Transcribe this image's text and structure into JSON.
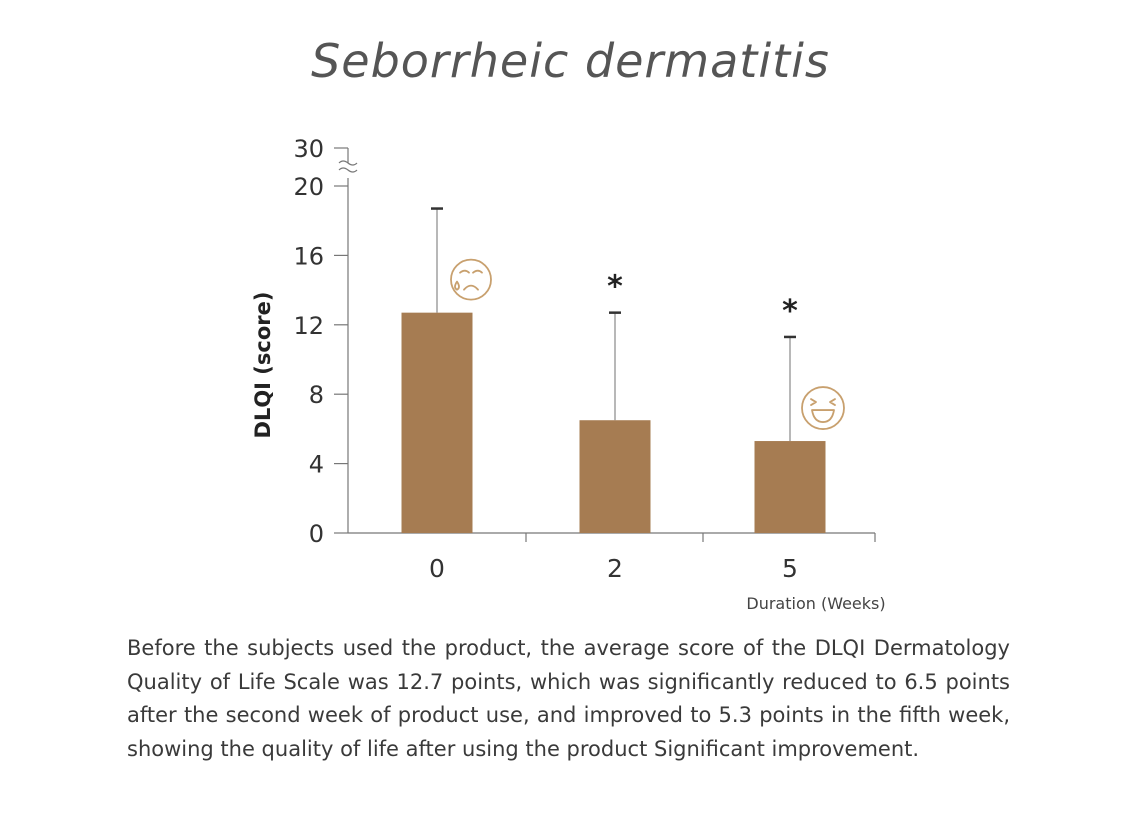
{
  "chart_data": {
    "type": "bar",
    "title": "Seborrheic dermatitis",
    "ylabel": "DLQI (score)",
    "xlabel": "Duration (Weeks)",
    "categories": [
      "0",
      "2",
      "5"
    ],
    "values": [
      12.7,
      6.5,
      5.3
    ],
    "error_upper": [
      18.7,
      12.7,
      11.3
    ],
    "significance": [
      "",
      "*",
      "*"
    ],
    "ylim": [
      0,
      20
    ],
    "yticks": [
      "0",
      "4",
      "8",
      "12",
      "16",
      "20"
    ],
    "axis_break_label": "30",
    "bar_color": "#A67C52",
    "icons": [
      "sad-face-icon",
      "",
      "happy-face-icon"
    ],
    "icon_color": "#C8A06E"
  },
  "caption": "Before the subjects used the product, the average score of the DLQI Dermatology Quality of Life Scale was 12.7 points, which was significantly reduced to 6.5 points after the second week of product use, and improved to 5.3 points in the fifth week, showing the quality of life after using the product Significant improvement."
}
